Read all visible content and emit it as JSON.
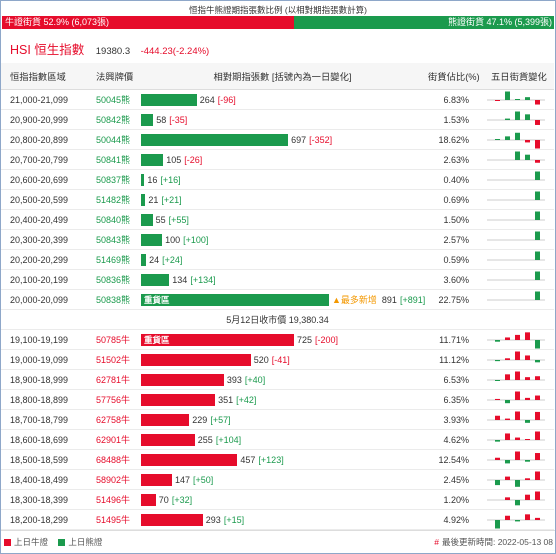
{
  "title": "恒指牛熊證期指張數比例 (以相對期指張數計算)",
  "ratio": {
    "bull": {
      "label": "牛證街貨 52.9% (6,073張)",
      "percent": 52.9
    },
    "bear": {
      "label": "熊證街貨 47.1% (5,399張)",
      "percent": 47.1
    }
  },
  "index": {
    "name": "HSI 恒生指數",
    "value": "19380.3",
    "change": "-444.23(-2.24%)"
  },
  "columns": [
    "恒指指數區域",
    "法興牌價",
    "相對期指張數 [括號內為一日變化]",
    "街貨佔比(%)",
    "五日街貨變化"
  ],
  "heavy_label": "重貨區",
  "most_added_label": "▲最多新增",
  "close_label": "5月12日收市價 19,380.34",
  "bear_rows": [
    {
      "range": "21,000-21,099",
      "code": "50045熊",
      "qty": 264,
      "change": "[-96]",
      "share": "6.83%",
      "five_day": [
        -10,
        180,
        20,
        60,
        -96
      ]
    },
    {
      "range": "20,900-20,999",
      "code": "50842熊",
      "qty": 58,
      "change": "[-35]",
      "share": "1.53%",
      "five_day": [
        0,
        10,
        60,
        40,
        -35
      ]
    },
    {
      "range": "20,800-20,899",
      "code": "50044熊",
      "qty": 697,
      "change": "[-352]",
      "share": "18.62%",
      "five_day": [
        40,
        150,
        300,
        -100,
        -352
      ]
    },
    {
      "range": "20,700-20,799",
      "code": "50841熊",
      "qty": 105,
      "change": "[-26]",
      "share": "2.63%",
      "five_day": [
        0,
        0,
        80,
        50,
        -26
      ]
    },
    {
      "range": "20,600-20,699",
      "code": "50837熊",
      "qty": 16,
      "change": "[+16]",
      "share": "0.40%",
      "five_day": [
        0,
        0,
        0,
        0,
        16
      ]
    },
    {
      "range": "20,500-20,599",
      "code": "51482熊",
      "qty": 21,
      "change": "[+21]",
      "share": "0.69%",
      "five_day": [
        0,
        0,
        0,
        0,
        21
      ]
    },
    {
      "range": "20,400-20,499",
      "code": "50840熊",
      "qty": 55,
      "change": "[+55]",
      "share": "1.50%",
      "five_day": [
        0,
        0,
        0,
        0,
        55
      ]
    },
    {
      "range": "20,300-20,399",
      "code": "50843熊",
      "qty": 100,
      "change": "[+100]",
      "share": "2.57%",
      "five_day": [
        0,
        0,
        0,
        0,
        100
      ]
    },
    {
      "range": "20,200-20,299",
      "code": "51469熊",
      "qty": 24,
      "change": "[+24]",
      "share": "0.59%",
      "five_day": [
        0,
        0,
        0,
        0,
        24
      ]
    },
    {
      "range": "20,100-20,199",
      "code": "50836熊",
      "qty": 134,
      "change": "[+134]",
      "share": "3.60%",
      "five_day": [
        0,
        0,
        0,
        0,
        134
      ]
    },
    {
      "range": "20,000-20,099",
      "code": "50838熊",
      "qty": 891,
      "change": "[+891]",
      "share": "22.75%",
      "heavy": true,
      "most_added": true,
      "five_day": [
        0,
        0,
        0,
        0,
        891
      ]
    }
  ],
  "bull_rows": [
    {
      "range": "19,100-19,199",
      "code": "50785牛",
      "qty": 725,
      "change": "[-200]",
      "share": "11.71%",
      "heavy": true,
      "five_day": [
        -40,
        60,
        120,
        180,
        -200
      ]
    },
    {
      "range": "19,000-19,099",
      "code": "51502牛",
      "qty": 520,
      "change": "[-41]",
      "share": "11.12%",
      "five_day": [
        -20,
        30,
        150,
        80,
        -41
      ]
    },
    {
      "range": "18,900-18,999",
      "code": "62781牛",
      "qty": 393,
      "change": "[+40]",
      "share": "6.53%",
      "five_day": [
        -10,
        60,
        90,
        30,
        40
      ]
    },
    {
      "range": "18,800-18,899",
      "code": "57756牛",
      "qty": 351,
      "change": "[+42]",
      "share": "6.35%",
      "five_day": [
        10,
        -30,
        80,
        20,
        42
      ]
    },
    {
      "range": "18,700-18,799",
      "code": "62758牛",
      "qty": 229,
      "change": "[+57]",
      "share": "3.93%",
      "five_day": [
        30,
        10,
        60,
        -20,
        57
      ]
    },
    {
      "range": "18,600-18,699",
      "code": "62901牛",
      "qty": 255,
      "change": "[+104]",
      "share": "4.62%",
      "five_day": [
        -20,
        80,
        30,
        10,
        104
      ]
    },
    {
      "range": "18,500-18,599",
      "code": "68488牛",
      "qty": 457,
      "change": "[+123]",
      "share": "12.54%",
      "five_day": [
        40,
        -60,
        150,
        -30,
        123
      ]
    },
    {
      "range": "18,400-18,499",
      "code": "58902牛",
      "qty": 147,
      "change": "[+50]",
      "share": "2.45%",
      "five_day": [
        -30,
        20,
        -40,
        10,
        50
      ]
    },
    {
      "range": "18,300-18,399",
      "code": "51496牛",
      "qty": 70,
      "change": "[+32]",
      "share": "1.20%",
      "five_day": [
        0,
        10,
        -20,
        20,
        32
      ]
    },
    {
      "range": "18,200-18,299",
      "code": "51495牛",
      "qty": 293,
      "change": "[+15]",
      "share": "4.92%",
      "five_day": [
        -60,
        30,
        -10,
        40,
        15
      ]
    }
  ],
  "footer": {
    "legend_bull": "上日牛證",
    "legend_bear": "上日熊證",
    "updated_mark": "#",
    "updated": "最後更新時間: 2022-05-13 08"
  },
  "colors": {
    "bull": "#e60c2b",
    "bear": "#1b9a4d",
    "accent": "#f39800",
    "baseline": "#cccccc"
  }
}
